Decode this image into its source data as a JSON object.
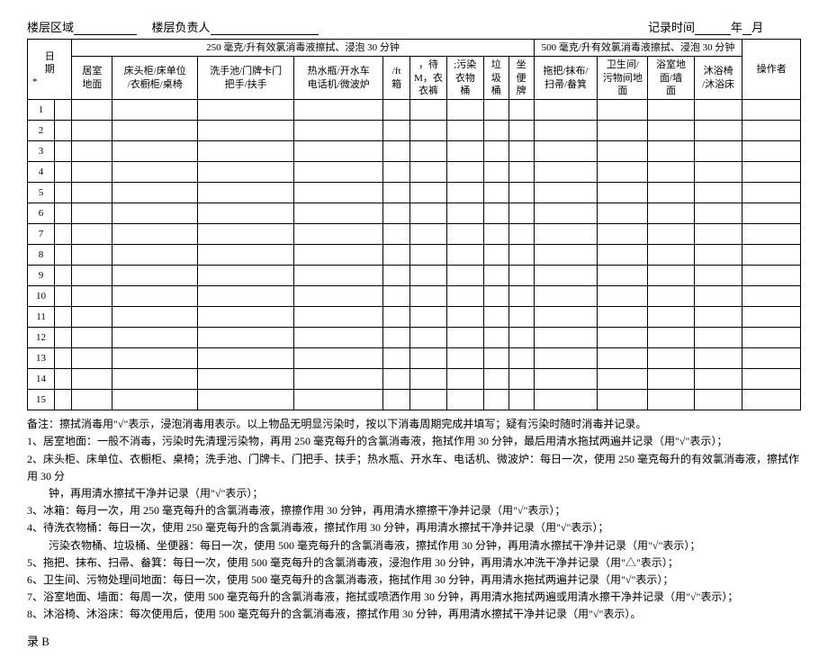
{
  "header": {
    "area_label": "楼层区域",
    "person_label": "楼层负责人",
    "time_label": "记录时间",
    "year_suffix": "年",
    "month_suffix": "月"
  },
  "table": {
    "date_col": "日\n期",
    "date_sub": "*",
    "group1_title": "250 毫克/升有效氯消毒液擦拭、浸泡 30 分钟",
    "group2_title": "500 毫克/升有效氯消毒液擦拭、浸泡 30 分钟",
    "operator": "操作者",
    "cols_g1": [
      "居室\n地面",
      "床头柜/床单位\n/衣橱柜/桌椅",
      "洗手池/门牌卡门\n把手/扶手",
      "热水瓶/开水车\n电话机/微波炉",
      "/ft\n箱",
      "，待\nM，衣\n衣裤",
      ";污染\n衣物\n桶",
      "垃\n圾\n桶",
      "坐\n便\n牌"
    ],
    "cols_g2": [
      "拖把/抹布/\n扫帚/畚箕",
      "卫生间/\n污物间地\n面",
      "浴室地\n面/墙\n面",
      "沐浴椅\n/沐浴床"
    ],
    "row_count": 15
  },
  "notes": {
    "head": "备注：擦拭消毒用\"√\"表示，浸泡消毒用表示。以上物品无明显污染时，按以下消毒周期完成并填写；疑有污染时随时消毒并记录。",
    "lines": [
      "1、居室地面：一般不消毒，污染时先清理污染物，再用 250 毫克每升的含氯消毒液，拖拭作用 30 分钟，最后用清水拖拭两遍并记录（用\"√\"表示）；",
      "2、床头柜、床单位、衣橱柜、桌椅；洗手池、门牌卡、门把手、扶手；热水瓶、开水车、电话机、微波炉：每日一次，使用 250 毫克每升的有效氯消毒液，擦拭作用 30 分",
      "　　钟，再用清水擦拭干净并记录（用\"√\"表示）；",
      "3、冰箱：每月一次，用 250 毫克每升的含氯消毒液，擦擦作用 30 分钟，再用清水擦擦干净并记录（用\"√\"表示）；",
      "4、待洗衣物桶：每日一次，使用 250 毫克每升的含氯消毒液，擦拭作用 30 分钟，再用清水擦拭干净并记录（用\"√\"表示）；",
      "　　污染衣物桶、垃圾桶、坐便器：每日一次，使用 500 毫克每升的含氯消毒液，擦拭作用 30 分钟，再用清水擦拭干净并记录（用\"√\"表示）；",
      "5、拖把、抹布、扫帚、畚箕：每日一次，使用 500 毫克每升的含氯消毒液，浸泡作用 30 分钟，再用清水冲洗干净并记录（用\"△\"表示）；",
      "6、卫生间、污物处理间地面：每日一次，使用 500 毫克每升的含氯消毒液，拖拭作用 30 分钟，再用清水拖拭两遍并记录（用\"√\"表示）；",
      "7、浴室地面、墙面：每周一次，使用 500 毫克每升的含氯消毒液，拖拭或喷洒作用 30 分钟，再用清水拖拭两遍或用清水擦干净并记录（用\"√\"表示）；",
      "8、沐浴椅、沐浴床：每次使用后，使用 500 毫克每升的含氯消毒液，擦拭作用 30 分钟，再用清水擦拭干净并记录（用\"√\"表示）。"
    ]
  },
  "footer": "录 B"
}
